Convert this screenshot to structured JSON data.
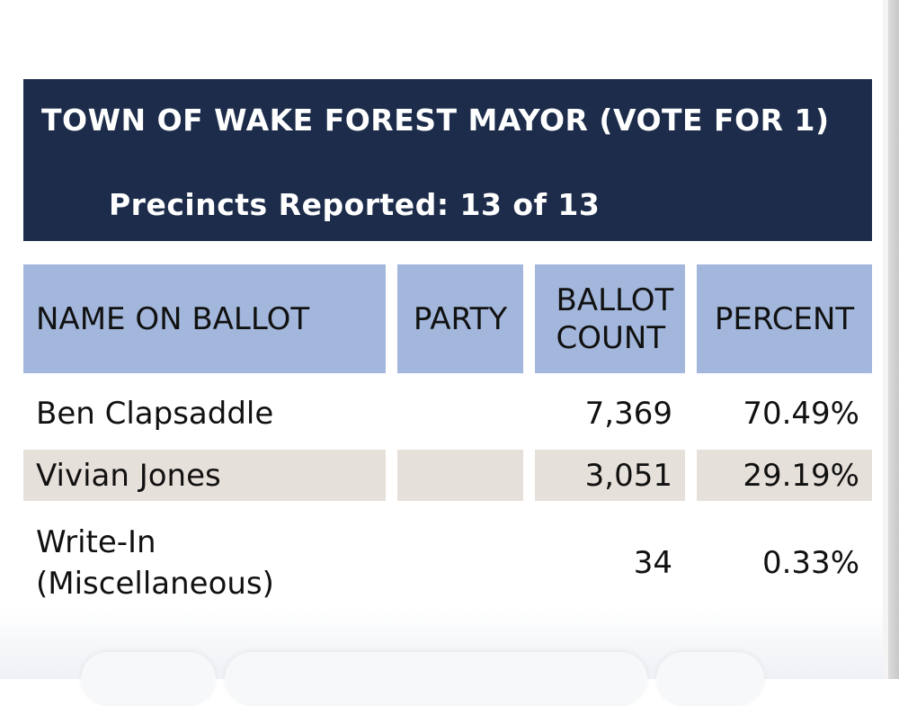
{
  "header": {
    "title": "TOWN OF WAKE FOREST MAYOR (VOTE FOR 1)",
    "precincts": "Precincts Reported: 13 of 13"
  },
  "table": {
    "columns": [
      "NAME ON BALLOT",
      "PARTY",
      "BALLOT COUNT",
      "PERCENT"
    ],
    "rows": [
      {
        "name": "Ben Clapsaddle",
        "party": "",
        "count": "7,369",
        "percent": "70.49%"
      },
      {
        "name": "Vivian Jones",
        "party": "",
        "count": "3,051",
        "percent": "29.19%"
      },
      {
        "name": "Write-In (Miscellaneous)",
        "party": "",
        "count": "34",
        "percent": "0.33%"
      }
    ]
  },
  "colors": {
    "header_bg": "#1c2c4a",
    "column_header_bg": "#a3b7dc",
    "alt_row_bg": "#e6e0da"
  }
}
